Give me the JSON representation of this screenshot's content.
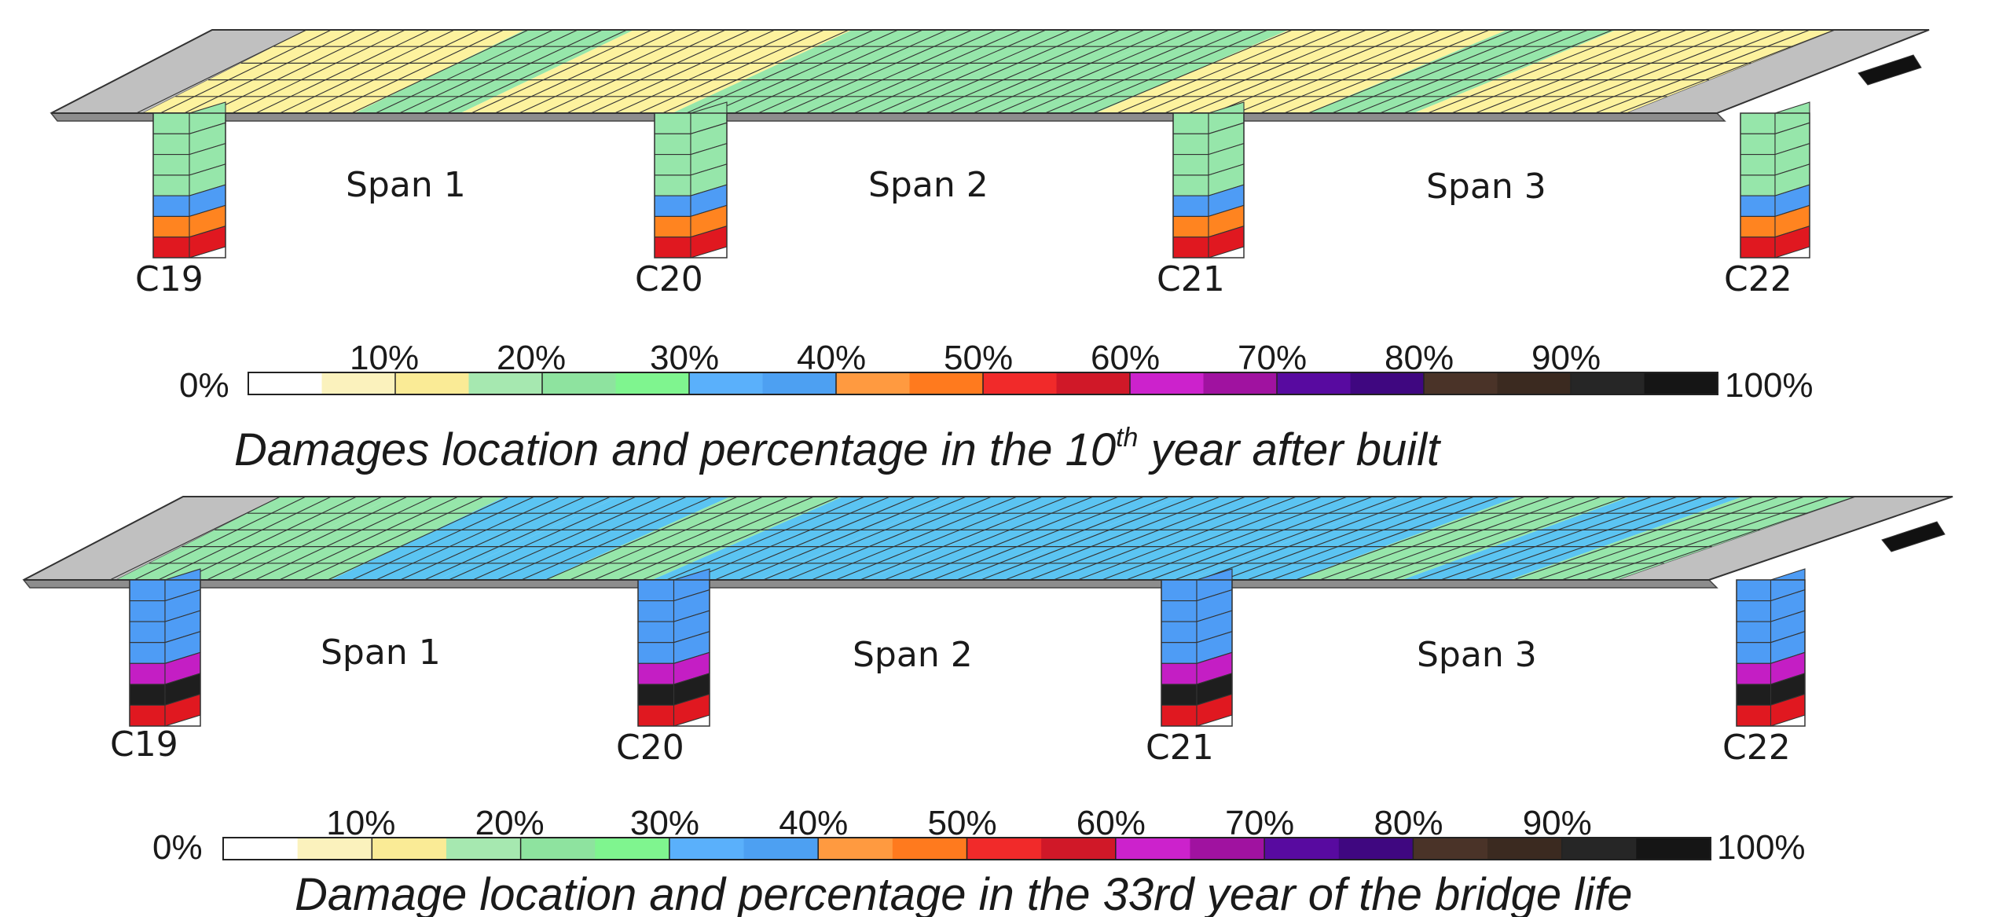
{
  "colors": {
    "ramp": [
      "#ffffff",
      "#fbf2bd",
      "#faeb96",
      "#a6e8b0",
      "#8ee39f",
      "#7ff58f",
      "#5ab0fb",
      "#4da0f2",
      "#ff9a40",
      "#ff7a1e",
      "#f12a2a",
      "#d01828",
      "#cc22cc",
      "#a012a0",
      "#580aa0",
      "#3f0780",
      "#4a3328",
      "#3b2a20",
      "#262626",
      "#151515"
    ],
    "deck_yellow": "#fdf29e",
    "deck_green": "#96e6aa",
    "deck_blue": "#5bc4f2",
    "abutment": "#c0c0c0",
    "grid_line": "#333333",
    "col_red": "#e01820",
    "col_orange": "#ff8420",
    "col_blue": "#4e9cf5",
    "col_purple": "#c41ec4",
    "col_black": "#1e1e1e"
  },
  "panels": [
    {
      "id": "year10",
      "spans": [
        "Span 1",
        "Span 2",
        "Span 3"
      ],
      "columns": [
        "C19",
        "C20",
        "C21",
        "C22"
      ],
      "deck_pattern": [
        "yellow",
        "yellow",
        "green",
        "yellow",
        "yellow",
        "green",
        "green",
        "green",
        "green",
        "yellow",
        "yellow",
        "green",
        "yellow",
        "yellow"
      ],
      "column_bands": [
        "green",
        "green",
        "green",
        "green",
        "blue",
        "orange",
        "red"
      ],
      "legend": {
        "min_label": "0%",
        "max_label": "100%",
        "ticks": [
          "10%",
          "20%",
          "30%",
          "40%",
          "50%",
          "60%",
          "70%",
          "80%",
          "90%"
        ]
      },
      "caption": {
        "before": "Damages location and percentage in the 10",
        "superscript": "th",
        "after": " year after built"
      }
    },
    {
      "id": "year33",
      "spans": [
        "Span 1",
        "Span 2",
        "Span 3"
      ],
      "columns": [
        "C19",
        "C20",
        "C21",
        "C22"
      ],
      "deck_pattern": [
        "green",
        "green",
        "blue",
        "blue",
        "green",
        "blue",
        "blue",
        "blue",
        "blue",
        "blue",
        "blue",
        "green",
        "blue",
        "green"
      ],
      "column_bands": [
        "blue",
        "blue",
        "blue",
        "blue",
        "purple",
        "black",
        "red"
      ],
      "legend": {
        "min_label": "0%",
        "max_label": "100%",
        "ticks": [
          "10%",
          "20%",
          "30%",
          "40%",
          "50%",
          "60%",
          "70%",
          "80%",
          "90%"
        ]
      },
      "caption": {
        "before": "Damage location and percentage in the 33rd year of the bridge life",
        "superscript": "",
        "after": ""
      }
    }
  ]
}
